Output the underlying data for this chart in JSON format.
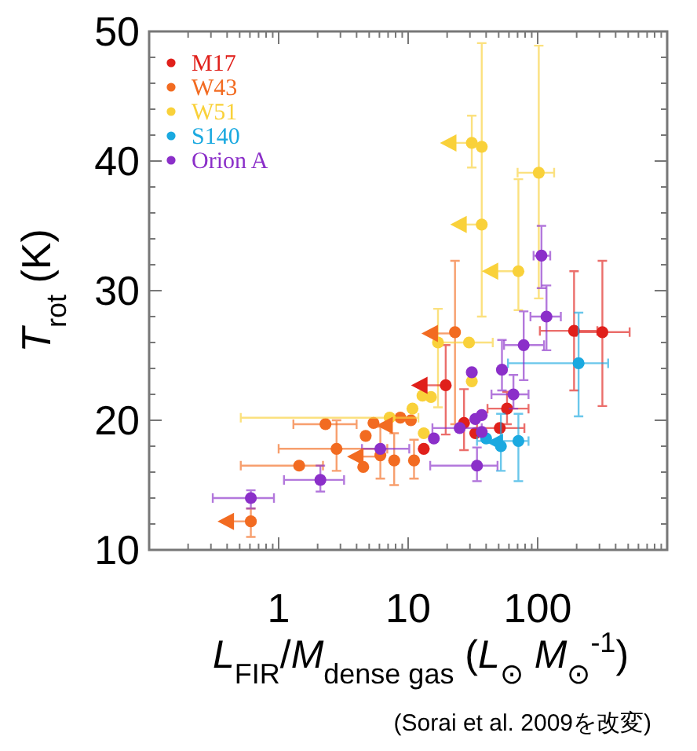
{
  "chart_data": {
    "type": "scatter",
    "xlabel": "*L*$_{FIR}$/*M*$_{dense gas}$ (*L*$_{⊙}$ *M*$_{⊙}$$^{-1}$)",
    "ylabel": "*T*$_{rot}$ (K)",
    "annotations": [
      "(Sorai et al. 2009を改変)"
    ],
    "log": "x",
    "xlim": [
      0.1,
      1000
    ],
    "ylim": [
      10,
      50
    ],
    "xticks": [
      {
        "value": 0.1,
        "label": null
      },
      {
        "value": 0.2,
        "label": null
      },
      {
        "value": 0.3,
        "label": null
      },
      {
        "value": 0.4,
        "label": null
      },
      {
        "value": 0.5,
        "label": null
      },
      {
        "value": 0.6,
        "label": null
      },
      {
        "value": 0.7,
        "label": null
      },
      {
        "value": 0.8,
        "label": null
      },
      {
        "value": 0.9,
        "label": null
      },
      1,
      {
        "value": 2,
        "label": null
      },
      {
        "value": 3,
        "label": null
      },
      {
        "value": 4,
        "label": null
      },
      {
        "value": 5,
        "label": null
      },
      {
        "value": 6,
        "label": null
      },
      {
        "value": 7,
        "label": null
      },
      {
        "value": 8,
        "label": null
      },
      {
        "value": 9,
        "label": null
      },
      10,
      {
        "value": 20,
        "label": null
      },
      {
        "value": 30,
        "label": null
      },
      {
        "value": 40,
        "label": null
      },
      {
        "value": 50,
        "label": null
      },
      {
        "value": 60,
        "label": null
      },
      {
        "value": 70,
        "label": null
      },
      {
        "value": 80,
        "label": null
      },
      {
        "value": 90,
        "label": null
      },
      100,
      {
        "value": 200,
        "label": null
      },
      {
        "value": 300,
        "label": null
      },
      {
        "value": 400,
        "label": null
      },
      {
        "value": 500,
        "label": null
      },
      {
        "value": 600,
        "label": null
      },
      {
        "value": 700,
        "label": null
      },
      {
        "value": 800,
        "label": null
      },
      {
        "value": 900,
        "label": null
      },
      {
        "value": 1000,
        "label": null
      }
    ],
    "yticks": [
      10,
      {
        "value": 12,
        "label": null
      },
      {
        "value": 14,
        "label": null
      },
      {
        "value": 16,
        "label": null
      },
      {
        "value": 18,
        "label": null
      },
      20,
      {
        "value": 22,
        "label": null
      },
      {
        "value": 24,
        "label": null
      },
      {
        "value": 26,
        "label": null
      },
      {
        "value": 28,
        "label": null
      },
      30,
      {
        "value": 32,
        "label": null
      },
      {
        "value": 34,
        "label": null
      },
      {
        "value": 36,
        "label": null
      },
      {
        "value": 38,
        "label": null
      },
      40,
      {
        "value": 42,
        "label": null
      },
      {
        "value": 44,
        "label": null
      },
      {
        "value": 46,
        "label": null
      },
      {
        "value": 48,
        "label": null
      },
      50
    ],
    "grid": false,
    "legend": "top left",
    "marker": "circle",
    "series": [
      {
        "name": "M17",
        "color": "#e0201b",
        "x": [
          19.5,
          13.2,
          27,
          33,
          58,
          51,
          191,
          316
        ],
        "values": [
          22.7,
          17.8,
          19.8,
          19.0,
          20.9,
          19.4,
          26.9,
          26.8
        ],
        "errors": [
          [
            18.9,
            25.8
          ],
          null,
          [
            17.7,
            22.4
          ],
          null,
          [
            19.7,
            22.2
          ],
          null,
          [
            22.3,
            31.5
          ],
          [
            21.1,
            32.3
          ]
        ],
        "xerrors": [
          null,
          null,
          null,
          null,
          [
            41,
            85
          ],
          [
            34,
            79
          ],
          [
            104,
            289
          ],
          [
            199,
            513
          ]
        ]
      },
      {
        "name": "W43",
        "color": "#f26b21",
        "x": [
          0.61,
          1.44,
          2.3,
          2.8,
          4.7,
          5.4,
          4.5,
          6.1,
          7.8,
          8.7,
          10.5,
          11.1,
          23
        ],
        "values": [
          12.2,
          16.5,
          19.7,
          17.8,
          18.8,
          19.8,
          16.4,
          17.3,
          16.9,
          20.2,
          20.0,
          16.9,
          26.8
        ],
        "errors": [
          [
            11.0,
            13.2
          ],
          null,
          null,
          [
            16.1,
            20.0
          ],
          null,
          null,
          null,
          [
            15.5,
            19.5
          ],
          [
            15.0,
            19.0
          ],
          null,
          null,
          [
            15.5,
            18.5
          ],
          [
            19.7,
            32.3
          ]
        ],
        "xerrors": [
          null,
          [
            0.51,
            2.2
          ],
          [
            1.3,
            4.0
          ],
          [
            1.0,
            6.9
          ],
          null,
          null,
          null,
          null,
          null,
          null,
          null,
          null,
          null
        ]
      },
      {
        "name": "W51",
        "color": "#f9d13a",
        "x": [
          7.2,
          10.8,
          12.9,
          15,
          13.2,
          17,
          29.5,
          31,
          37,
          102,
          71,
          31,
          37
        ],
        "values": [
          20.2,
          20.9,
          21.9,
          21.8,
          19.0,
          26.0,
          26.0,
          23.0,
          41.1,
          39.1,
          31.5,
          41.4,
          35.1
        ],
        "errors": [
          null,
          null,
          null,
          null,
          null,
          [
            21,
            28.6
          ],
          null,
          null,
          [
            28,
            49.1
          ],
          [
            29.4,
            48.9
          ],
          [
            28.5,
            38.6
          ],
          [
            39.5,
            43.5
          ],
          null
        ],
        "xerrors": [
          [
            0.51,
            12
          ],
          null,
          null,
          null,
          null,
          null,
          [
            18,
            45
          ],
          null,
          null,
          [
            70,
            134
          ],
          null,
          null,
          null
        ]
      },
      {
        "name": "S140",
        "color": "#1aa9e0",
        "x": [
          207,
          40,
          52,
          71
        ],
        "values": [
          24.4,
          18.6,
          18.0,
          18.4
        ],
        "errors": [
          [
            20.3,
            28.3
          ],
          null,
          [
            16.1,
            20.5
          ],
          [
            15.3,
            20.5
          ]
        ],
        "xerrors": [
          [
            59,
            350
          ],
          null,
          null,
          [
            34,
            85
          ]
        ]
      },
      {
        "name": "Orion A",
        "color": "#8b2fc9",
        "x": [
          0.61,
          2.1,
          6.1,
          15.8,
          25,
          33,
          37,
          37,
          34,
          31,
          53,
          65,
          78,
          117,
          107
        ],
        "values": [
          14.0,
          15.4,
          17.8,
          18.6,
          19.4,
          20.1,
          20.4,
          19.1,
          16.5,
          23.7,
          23.9,
          22.0,
          25.8,
          28.0,
          32.7
        ],
        "errors": [
          [
            13.2,
            14.6
          ],
          [
            14.5,
            16.5
          ],
          null,
          null,
          null,
          null,
          null,
          null,
          [
            15.3,
            17.9
          ],
          null,
          [
            22.3,
            26.2
          ],
          [
            20.9,
            23.5
          ],
          [
            23.1,
            28.4
          ],
          [
            25.4,
            30.4
          ],
          [
            30.2,
            35.0
          ]
        ],
        "xerrors": [
          [
            0.31,
            0.92
          ],
          [
            1.1,
            3.2
          ],
          [
            4.4,
            10.2
          ],
          null,
          [
            15.4,
            37
          ],
          null,
          null,
          null,
          [
            14.8,
            49
          ],
          null,
          null,
          [
            44,
            85
          ],
          [
            55,
            112
          ],
          [
            88,
            151
          ],
          [
            93,
            125
          ]
        ]
      },
      {
        "color": "#e0201b",
        "marker": "triangle",
        "x": [
          12.8
        ],
        "values": [
          22.7
        ],
        "xerrors": [
          [
            12.8,
            19.5
          ]
        ]
      },
      {
        "color": "#f26b21",
        "marker": "triangle",
        "x": [
          0.41,
          4.1,
          6.9,
          15.4
        ],
        "values": [
          12.2,
          17.2,
          19.6,
          26.7
        ],
        "xerrors": [
          [
            0.41,
            0.61
          ],
          [
            4.1,
            6.1
          ],
          null,
          [
            15.4,
            23
          ]
        ]
      },
      {
        "color": "#f9d13a",
        "marker": "triangle",
        "x": [
          21.4,
          25.7,
          45
        ],
        "values": [
          41.4,
          35.1,
          31.5
        ],
        "xerrors": [
          [
            21.4,
            31
          ],
          [
            25.7,
            37
          ],
          [
            45,
            71
          ]
        ]
      },
      {
        "color": "#1aa9e0",
        "marker": "triangle",
        "x": [
          49
        ],
        "values": [
          18.3
        ]
      }
    ]
  }
}
